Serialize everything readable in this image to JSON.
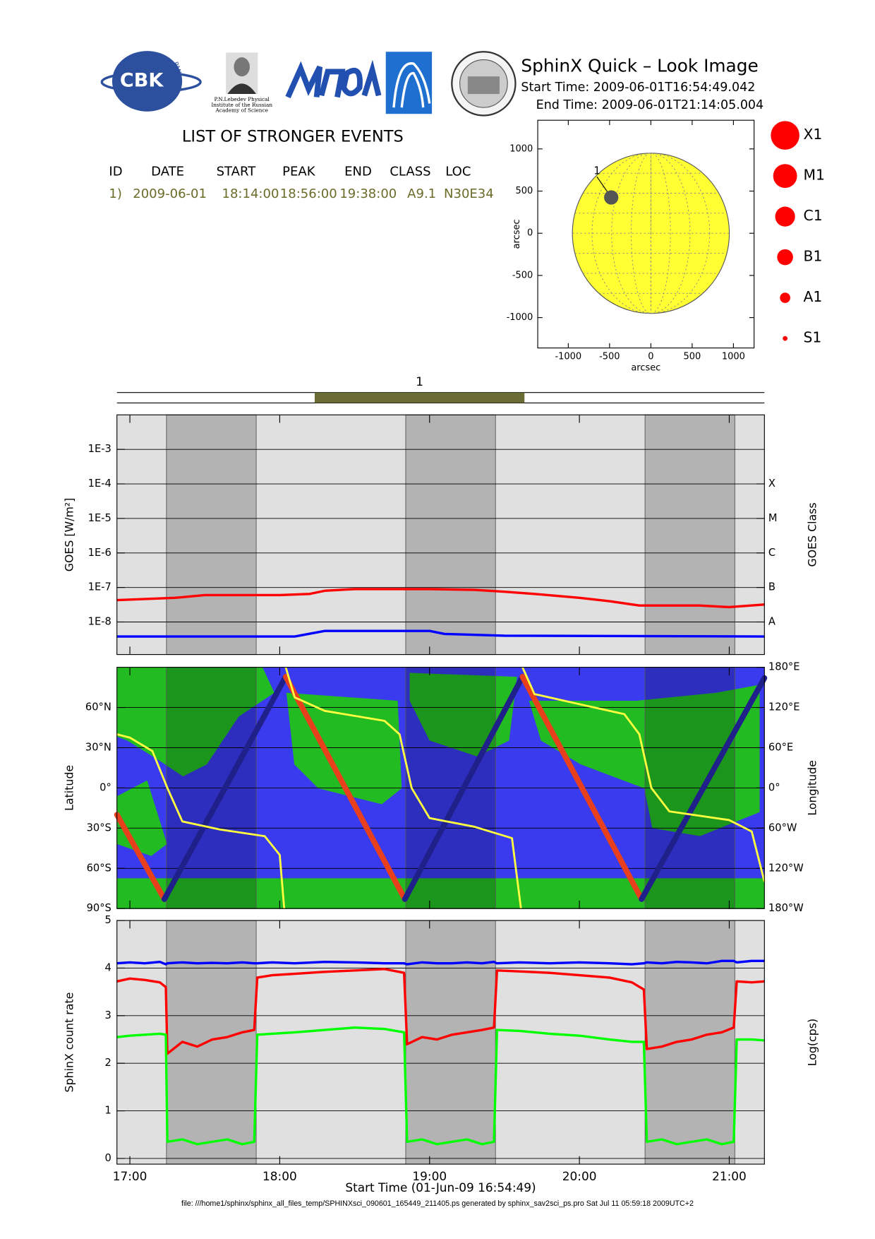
{
  "header": {
    "logos": {
      "cbk": "CBK",
      "pan": "PAN",
      "lebedev": [
        "P.N.Lebedev Physical",
        "Institute of the Russian",
        "Academy of Science"
      ]
    },
    "title": "SphinX Quick – Look Image",
    "start_time": "Start Time: 2009-06-01T16:54:49.042",
    "end_time": "End Time: 2009-06-01T21:14:05.004"
  },
  "events": {
    "title": "LIST OF STRONGER EVENTS",
    "columns": [
      "ID",
      "DATE",
      "START",
      "PEAK",
      "END",
      "CLASS",
      "LOC"
    ],
    "rows": [
      [
        "1)",
        "2009-06-01",
        "18:14:00",
        "18:56:00",
        "19:38:00",
        "A9.1",
        "N30E34"
      ]
    ],
    "row_color": "#6b6b2a"
  },
  "class_legend": {
    "labels": [
      "X1",
      "M1",
      "C1",
      "B1",
      "A1",
      "S1"
    ],
    "color": "#ff0000"
  },
  "night_intervals": [
    [
      17.244,
      17.843
    ],
    [
      18.841,
      19.44
    ],
    [
      20.438,
      21.037
    ]
  ],
  "chart_data": [
    {
      "type": "disk",
      "xlabel": "arcsec",
      "ylabel": "arcsec",
      "xlim": [
        -1370,
        1250
      ],
      "ylim": [
        -1360,
        1340
      ],
      "xticks": [
        -1000,
        -500,
        0,
        500,
        1000
      ],
      "yticks": [
        -1000,
        -500,
        0,
        500,
        1000
      ],
      "solar_radius": 950,
      "disk_color": "#ffff33",
      "grid": true,
      "points": [
        {
          "label": "1",
          "x": -480,
          "y": 425
        }
      ],
      "point_color": "#555555"
    },
    {
      "type": "event_bar",
      "xlim": [
        16.91361,
        21.23472
      ],
      "events": [
        {
          "label": "1",
          "start": 18.2333,
          "end": 19.6333
        }
      ],
      "color": "#6b6b35"
    },
    {
      "type": "line",
      "log": true,
      "ylabel": "GOES [W/m²]",
      "y2label": "GOES Class",
      "xlim": [
        16.91361,
        21.23472
      ],
      "ylim": [
        1.14e-09,
        0.01
      ],
      "yticks": [
        {
          "value": 0.001,
          "label": "1E-3"
        },
        {
          "value": 0.0001,
          "label": "1E-4"
        },
        {
          "value": 1e-05,
          "label": "1E-5"
        },
        {
          "value": 1e-06,
          "label": "1E-6"
        },
        {
          "value": 1e-07,
          "label": "1E-7"
        },
        {
          "value": 1e-08,
          "label": "1E-8"
        }
      ],
      "y2lim": [
        1.14e-09,
        0.01
      ],
      "y2ticks": [
        {
          "value": 0.0001,
          "label": "X"
        },
        {
          "value": 1e-05,
          "label": "M"
        },
        {
          "value": 1e-06,
          "label": "C"
        },
        {
          "value": 1e-07,
          "label": "B"
        },
        {
          "value": 1e-08,
          "label": "A"
        }
      ],
      "grid": true,
      "series": [
        {
          "color": "#ff0000",
          "x": [
            16.91361,
            17.3,
            17.5,
            18.0,
            18.2,
            18.3,
            18.5,
            19.0,
            19.3,
            19.5,
            19.7,
            20.0,
            20.2,
            20.4,
            20.8,
            21.0,
            21.23472
          ],
          "values": [
            4.3e-08,
            5e-08,
            6e-08,
            6e-08,
            6.5e-08,
            8e-08,
            9e-08,
            9e-08,
            8.5e-08,
            7.5e-08,
            6.5e-08,
            5e-08,
            4e-08,
            3e-08,
            3e-08,
            2.7e-08,
            3.2e-08
          ]
        },
        {
          "color": "#0000ff",
          "x": [
            16.91361,
            18.1,
            18.3,
            19.0,
            19.1,
            19.5,
            21.23472
          ],
          "values": [
            3.8e-09,
            3.8e-09,
            5.5e-09,
            5.5e-09,
            4.5e-09,
            4e-09,
            3.8e-09
          ]
        }
      ]
    },
    {
      "type": "line",
      "ylabel": "Latitude",
      "y2label": "Longitude",
      "xlim": [
        16.91361,
        21.23472
      ],
      "ylim": [
        -90,
        90
      ],
      "yticks": [
        {
          "value": -90,
          "label": "90°S"
        },
        {
          "value": -60,
          "label": "60°S"
        },
        {
          "value": -30,
          "label": "30°S"
        },
        {
          "value": 0,
          "label": "0°"
        },
        {
          "value": 30,
          "label": "30°N"
        },
        {
          "value": 60,
          "label": "60°N"
        }
      ],
      "y2lim": [
        -180,
        180
      ],
      "y2ticks": [
        {
          "value": -180,
          "label": "180°W"
        },
        {
          "value": -120,
          "label": "120°W"
        },
        {
          "value": -60,
          "label": "60°W"
        },
        {
          "value": 0,
          "label": "0°"
        },
        {
          "value": 60,
          "label": "60°E"
        },
        {
          "value": 120,
          "label": "120°E"
        },
        {
          "value": 180,
          "label": "180°E"
        }
      ],
      "grid": true,
      "series": [
        {
          "color": "#e8401c",
          "color_ascending": "#20208a",
          "x": [
            16.91361,
            17.23,
            18.04,
            18.835,
            19.62,
            20.415,
            21.23472
          ],
          "values": [
            -20,
            -83,
            83,
            -83,
            83,
            -83,
            82
          ]
        },
        {
          "axis": "y2",
          "color": "#ffff40",
          "x": [
            16.91361,
            17.0,
            17.15,
            17.25,
            17.35,
            17.6,
            17.9,
            18.0,
            18.03,
            18.035,
            18.04,
            18.1,
            18.3,
            18.7,
            18.8,
            18.88,
            19.0,
            19.3,
            19.55,
            19.61,
            19.615,
            19.62,
            19.7,
            20.0,
            20.3,
            20.4,
            20.48,
            20.6,
            21.0,
            21.15,
            21.23472
          ],
          "values": [
            80,
            75,
            55,
            0,
            -50,
            -62,
            -72,
            -100,
            -180,
            null,
            180,
            135,
            115,
            100,
            80,
            0,
            -45,
            -58,
            -75,
            -180,
            null,
            180,
            140,
            125,
            110,
            80,
            0,
            -35,
            -48,
            -65,
            -140
          ]
        }
      ]
    },
    {
      "type": "line",
      "ylabel": "SphinX count rate",
      "y2label": "Log(cps)",
      "xlabel": "Start Time (01-Jun-09 16:54:49)",
      "xlim": [
        16.91361,
        21.23472
      ],
      "ylim": [
        -0.12,
        5
      ],
      "yticks": [
        0,
        1,
        2,
        3,
        4,
        5
      ],
      "xticks": [
        {
          "value": 17,
          "label": "17:00"
        },
        {
          "value": 18,
          "label": "18:00"
        },
        {
          "value": 19,
          "label": "19:00"
        },
        {
          "value": 20,
          "label": "20:00"
        },
        {
          "value": 21,
          "label": "21:00"
        }
      ],
      "grid": true,
      "x": [
        16.91361,
        17.0,
        17.1,
        17.2,
        17.24,
        17.25,
        17.35,
        17.45,
        17.55,
        17.65,
        17.75,
        17.83,
        17.85,
        17.95,
        18.1,
        18.3,
        18.5,
        18.7,
        18.83,
        18.85,
        18.95,
        19.05,
        19.15,
        19.25,
        19.35,
        19.43,
        19.45,
        19.6,
        19.8,
        20.0,
        20.2,
        20.35,
        20.43,
        20.45,
        20.55,
        20.65,
        20.75,
        20.85,
        20.95,
        21.03,
        21.05,
        21.15,
        21.23472
      ],
      "series": [
        {
          "color": "#0000ff",
          "values": [
            4.1,
            4.12,
            4.1,
            4.13,
            4.08,
            4.1,
            4.12,
            4.1,
            4.11,
            4.1,
            4.12,
            4.1,
            4.1,
            4.12,
            4.1,
            4.13,
            4.12,
            4.1,
            4.1,
            4.08,
            4.12,
            4.1,
            4.1,
            4.12,
            4.1,
            4.13,
            4.1,
            4.12,
            4.1,
            4.12,
            4.1,
            4.08,
            4.1,
            4.12,
            4.1,
            4.13,
            4.12,
            4.1,
            4.15,
            4.15,
            4.12,
            4.15,
            4.15
          ]
        },
        {
          "color": "#ff0000",
          "values": [
            3.72,
            3.78,
            3.75,
            3.7,
            3.6,
            2.2,
            2.45,
            2.35,
            2.5,
            2.55,
            2.65,
            2.7,
            3.8,
            3.85,
            3.88,
            3.92,
            3.95,
            3.98,
            3.9,
            2.4,
            2.55,
            2.5,
            2.6,
            2.65,
            2.7,
            2.75,
            3.95,
            3.93,
            3.9,
            3.85,
            3.8,
            3.7,
            3.55,
            2.3,
            2.35,
            2.45,
            2.5,
            2.6,
            2.65,
            2.75,
            3.72,
            3.7,
            3.72
          ]
        },
        {
          "color": "#00ff00",
          "values": [
            2.55,
            2.58,
            2.6,
            2.62,
            2.6,
            0.35,
            0.4,
            0.3,
            0.35,
            0.4,
            0.3,
            0.35,
            2.6,
            2.62,
            2.65,
            2.7,
            2.75,
            2.72,
            2.65,
            0.35,
            0.4,
            0.3,
            0.35,
            0.4,
            0.3,
            0.35,
            2.7,
            2.68,
            2.62,
            2.58,
            2.5,
            2.45,
            2.45,
            0.35,
            0.4,
            0.3,
            0.35,
            0.4,
            0.3,
            0.35,
            2.5,
            2.5,
            2.48
          ]
        }
      ]
    }
  ],
  "footer": "file: ///home1/sphinx/sphinx_all_files_temp/SPHINXsci_090601_165449_211405.ps generated by sphinx_sav2sci_ps.pro Sat Jul 11 05:59:18 2009UTC+2"
}
